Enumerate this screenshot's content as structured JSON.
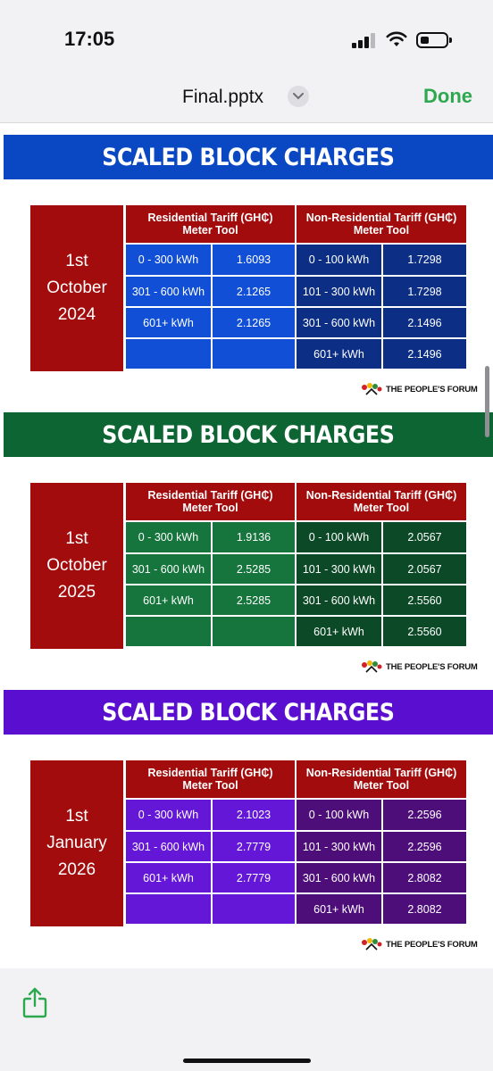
{
  "status_bar": {
    "time": "17:05"
  },
  "nav": {
    "file_title": "Final.pptx",
    "done_label": "Done"
  },
  "colors": {
    "tariff_red": "#a30c0c",
    "done_green": "#2ea84f",
    "slide1": "#0a47c2",
    "slide2": "#0d6533",
    "slide3": "#5a0fd0"
  },
  "table_headers": {
    "residential": [
      "Residential Tariff (GH₵)",
      "Meter Tool"
    ],
    "non_residential": [
      "Non-Residential Tariff (GH₵)",
      "Meter Tool"
    ]
  },
  "logo_text": "THE PEOPLE'S FORUM",
  "slides": [
    {
      "header": "SCALED BLOCK CHARGES",
      "date": [
        "1st",
        "October",
        "2024"
      ],
      "residential": [
        [
          "0 - 300 kWh",
          "1.6093"
        ],
        [
          "301 - 600 kWh",
          "2.1265"
        ],
        [
          "601+ kWh",
          "2.1265"
        ],
        [
          "",
          ""
        ]
      ],
      "non_residential": [
        [
          "0 - 100 kWh",
          "1.7298"
        ],
        [
          "101 - 300 kWh",
          "1.7298"
        ],
        [
          "301 - 600 kWh",
          "2.1496"
        ],
        [
          "601+ kWh",
          "2.1496"
        ]
      ]
    },
    {
      "header": "SCALED BLOCK CHARGES",
      "date": [
        "1st",
        "October",
        "2025"
      ],
      "residential": [
        [
          "0 - 300 kWh",
          "1.9136"
        ],
        [
          "301 - 600 kWh",
          "2.5285"
        ],
        [
          "601+ kWh",
          "2.5285"
        ],
        [
          "",
          ""
        ]
      ],
      "non_residential": [
        [
          "0 - 100 kWh",
          "2.0567"
        ],
        [
          "101 - 300 kWh",
          "2.0567"
        ],
        [
          "301 - 600 kWh",
          "2.5560"
        ],
        [
          "601+ kWh",
          "2.5560"
        ]
      ]
    },
    {
      "header": "SCALED BLOCK CHARGES",
      "date": [
        "1st",
        "January",
        "2026"
      ],
      "residential": [
        [
          "0 - 300 kWh",
          "2.1023"
        ],
        [
          "301 - 600 kWh",
          "2.7779"
        ],
        [
          "601+ kWh",
          "2.7779"
        ],
        [
          "",
          ""
        ]
      ],
      "non_residential": [
        [
          "0 - 100 kWh",
          "2.2596"
        ],
        [
          "101 - 300 kWh",
          "2.2596"
        ],
        [
          "301 - 600 kWh",
          "2.8082"
        ],
        [
          "601+ kWh",
          "2.8082"
        ]
      ]
    }
  ]
}
